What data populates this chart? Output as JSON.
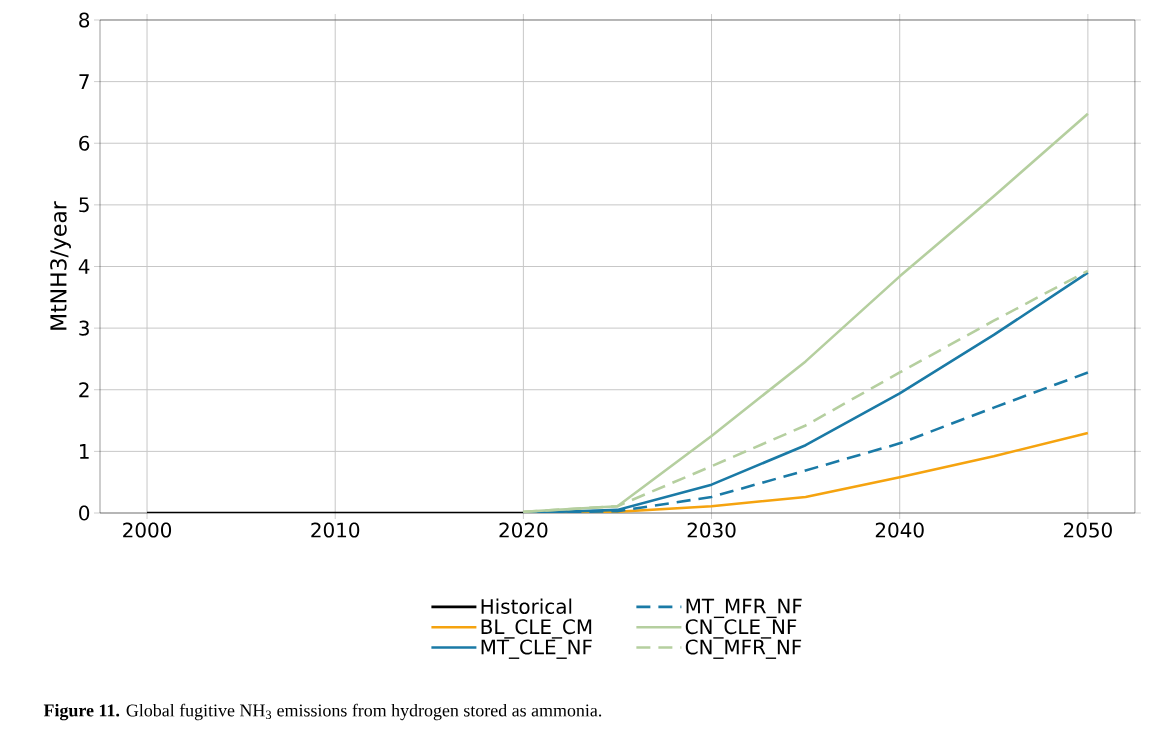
{
  "chart_data": {
    "type": "line",
    "ylabel": "MtNH3/year",
    "xlim": [
      1997.5,
      2052.5
    ],
    "ylim": [
      0,
      8
    ],
    "xticks": [
      2000,
      2010,
      2020,
      2030,
      2040,
      2050
    ],
    "yticks": [
      0,
      1,
      2,
      3,
      4,
      5,
      6,
      7,
      8
    ],
    "grid": true,
    "legend": "bottom",
    "marker": "none",
    "series": [
      {
        "name": "Historical",
        "color": "#000000",
        "line_style": "solid",
        "x": [
          2000,
          2005,
          2010,
          2015,
          2020
        ],
        "values": [
          0,
          0,
          0,
          0,
          0
        ]
      },
      {
        "name": "BL_CLE_CM",
        "color": "#f5a30f",
        "line_style": "solid",
        "x": [
          2020,
          2025,
          2030,
          2035,
          2040,
          2045,
          2050
        ],
        "values": [
          0,
          0.02,
          0.11,
          0.26,
          0.58,
          0.92,
          1.3
        ]
      },
      {
        "name": "MT_CLE_NF",
        "color": "#1a7aa6",
        "line_style": "solid",
        "x": [
          2020,
          2025,
          2030,
          2035,
          2040,
          2045,
          2050
        ],
        "values": [
          0,
          0.05,
          0.46,
          1.1,
          1.94,
          2.89,
          3.9
        ]
      },
      {
        "name": "MT_MFR_NF",
        "color": "#1a7aa6",
        "line_style": "dashed",
        "x": [
          2020,
          2025,
          2030,
          2035,
          2040,
          2045,
          2050
        ],
        "values": [
          0,
          0.03,
          0.26,
          0.69,
          1.13,
          1.71,
          2.28
        ]
      },
      {
        "name": "CN_CLE_NF",
        "color": "#b5cf9f",
        "line_style": "solid",
        "x": [
          2020,
          2025,
          2030,
          2035,
          2040,
          2045,
          2050
        ],
        "values": [
          0.02,
          0.11,
          1.25,
          2.46,
          3.84,
          5.14,
          6.48
        ]
      },
      {
        "name": "CN_MFR_NF",
        "color": "#b5cf9f",
        "line_style": "dashed",
        "x": [
          2020,
          2025,
          2030,
          2035,
          2040,
          2045,
          2050
        ],
        "values": [
          0.02,
          0.11,
          0.76,
          1.42,
          2.28,
          3.12,
          3.93
        ]
      }
    ],
    "annotations": [
      "**Figure 11.** Global fugitive NH$_{3}$ emissions from hydrogen stored as ammonia."
    ]
  }
}
